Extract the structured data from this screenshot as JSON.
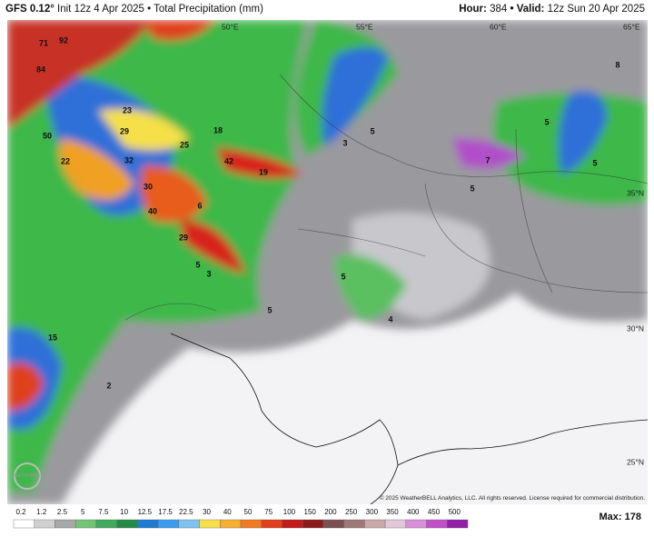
{
  "header": {
    "model": "GFS 0.12°",
    "subtitle": "Init 12z 4 Apr 2025 • Total Precipitation (mm)",
    "hour_label": "Hour:",
    "hour": "384",
    "valid_label": "• Valid:",
    "valid": "12z Sun 20 Apr 2025"
  },
  "map": {
    "longitudes": [
      "50°E",
      "55°E",
      "60°E",
      "65°E"
    ],
    "latitudes": [
      "35°N",
      "30°N",
      "25°N"
    ],
    "labels": [
      "92",
      "71",
      "84",
      "23",
      "29",
      "25",
      "42",
      "19",
      "50",
      "22",
      "32",
      "30",
      "40",
      "29",
      "5",
      "5",
      "5",
      "7",
      "8",
      "5",
      "5",
      "4",
      "5",
      "15",
      "2",
      "3",
      "6",
      "18",
      "3",
      "5"
    ],
    "copyright": "© 2025 WeatherBELL Analytics, LLC. All rights reserved. License required for commercial distribution.",
    "logo": "WEATHERBELL"
  },
  "colorbar": {
    "labels": [
      "0.2",
      "1.2",
      "2.5",
      "5",
      "7.5",
      "10",
      "12.5",
      "17.5",
      "22.5",
      "30",
      "40",
      "50",
      "75",
      "100",
      "150",
      "200",
      "250",
      "300",
      "350",
      "400",
      "450",
      "500"
    ],
    "max_label": "Max:",
    "max": "178"
  }
}
